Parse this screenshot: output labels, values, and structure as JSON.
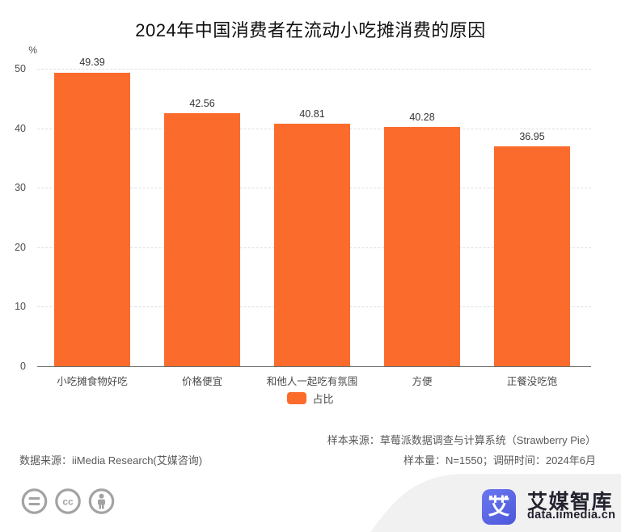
{
  "chart_data": {
    "type": "bar",
    "title": "2024年中国消费者在流动小吃摊消费的原因",
    "unit": "%",
    "categories": [
      "小吃摊食物好吃",
      "价格便宜",
      "和他人一起吃有氛围",
      "方便",
      "正餐没吃饱"
    ],
    "values": [
      49.39,
      42.56,
      40.81,
      40.28,
      36.95
    ],
    "series_name": "占比",
    "ylim": [
      0,
      50
    ],
    "yticks": [
      0,
      10,
      20,
      30,
      40,
      50
    ],
    "grid": "horizontal-dashed",
    "legend_position": "bottom",
    "bar_color": "#fb6c2c"
  },
  "legend": {
    "label": "占比",
    "color": "#fb6c2c"
  },
  "footer": {
    "source_left": "数据来源：iiMedia Research(艾媒咨询)",
    "sample_source": "样本来源：草莓派数据调查与计算系统（Strawberry Pie）",
    "sample_info": "样本量：N=1550；调研时间：2024年6月"
  },
  "branding": {
    "logo_char": "艾",
    "brand_name": "艾媒智库",
    "brand_url": "data.iimedia.cn",
    "logo_color": "#5663e2",
    "license_icons": [
      "equals-icon",
      "cc-icon",
      "person-icon"
    ],
    "icon_color": "#a3a3a3"
  }
}
